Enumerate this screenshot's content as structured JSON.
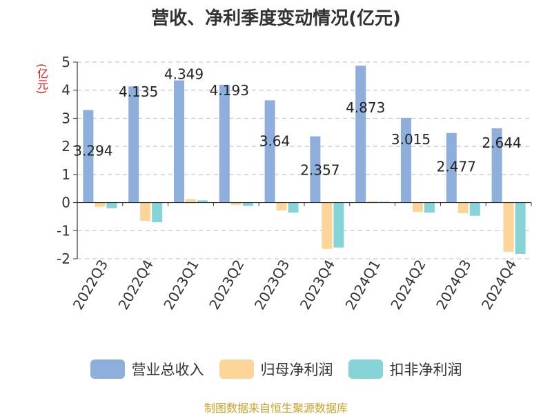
{
  "chart_data": {
    "type": "bar",
    "title": "营收、净利季度变动情况(亿元)",
    "ylabel": "(亿元)",
    "xlabel": "",
    "ylim": [
      -2,
      5
    ],
    "yticks": [
      -2,
      -1,
      0,
      1,
      2,
      3,
      4,
      5
    ],
    "grid": true,
    "legend_position": "bottom",
    "categories": [
      "2022Q3",
      "2022Q4",
      "2023Q1",
      "2023Q2",
      "2023Q3",
      "2023Q4",
      "2024Q1",
      "2024Q2",
      "2024Q3",
      "2024Q4"
    ],
    "series": [
      {
        "name": "营业总收入",
        "color": "#8eaedc",
        "values": [
          3.294,
          4.135,
          4.349,
          4.193,
          3.64,
          2.357,
          4.873,
          3.015,
          2.477,
          2.644
        ],
        "labels": [
          "3.294",
          "4.135",
          "4.349",
          "4.193",
          "3.64",
          "2.357",
          "4.873",
          "3.015",
          "2.477",
          "2.644"
        ]
      },
      {
        "name": "归母净利润",
        "color": "#fdd598",
        "values": [
          -0.15,
          -0.65,
          0.12,
          -0.08,
          -0.28,
          -1.65,
          0.05,
          -0.33,
          -0.38,
          -1.75
        ]
      },
      {
        "name": "扣非净利润",
        "color": "#86d4d8",
        "values": [
          -0.2,
          -0.7,
          0.08,
          -0.12,
          -0.36,
          -1.6,
          0.03,
          -0.36,
          -0.47,
          -1.83
        ]
      }
    ]
  },
  "source_text": "制图数据来自恒生聚源数据库"
}
